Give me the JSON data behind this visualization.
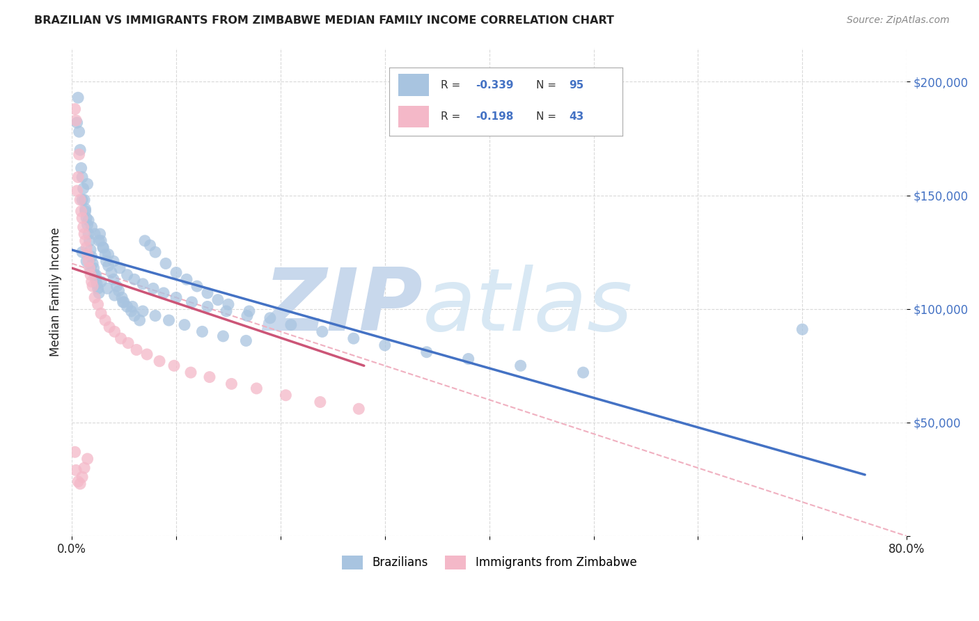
{
  "title": "BRAZILIAN VS IMMIGRANTS FROM ZIMBABWE MEDIAN FAMILY INCOME CORRELATION CHART",
  "source": "Source: ZipAtlas.com",
  "ylabel": "Median Family Income",
  "yticks": [
    0,
    50000,
    100000,
    150000,
    200000
  ],
  "ytick_labels": [
    "",
    "$50,000",
    "$100,000",
    "$150,000",
    "$200,000"
  ],
  "xmin": 0.0,
  "xmax": 0.8,
  "ymin": 0,
  "ymax": 215000,
  "watermark_zip": "ZIP",
  "watermark_atlas": "atlas",
  "color_blue": "#a8c4e0",
  "color_pink": "#f4b8c8",
  "line_blue": "#4472c4",
  "line_pink": "#cc5577",
  "line_dashed_color": "#f0b0c0",
  "brazilians_x": [
    0.005,
    0.006,
    0.007,
    0.008,
    0.009,
    0.01,
    0.011,
    0.012,
    0.013,
    0.014,
    0.015,
    0.015,
    0.016,
    0.017,
    0.018,
    0.019,
    0.02,
    0.021,
    0.022,
    0.023,
    0.024,
    0.025,
    0.026,
    0.027,
    0.028,
    0.03,
    0.032,
    0.033,
    0.035,
    0.038,
    0.04,
    0.043,
    0.045,
    0.048,
    0.05,
    0.053,
    0.057,
    0.06,
    0.065,
    0.07,
    0.075,
    0.08,
    0.09,
    0.1,
    0.11,
    0.12,
    0.13,
    0.14,
    0.15,
    0.17,
    0.19,
    0.21,
    0.24,
    0.27,
    0.3,
    0.34,
    0.38,
    0.43,
    0.49,
    0.7,
    0.01,
    0.013,
    0.016,
    0.019,
    0.022,
    0.026,
    0.03,
    0.035,
    0.04,
    0.046,
    0.053,
    0.06,
    0.068,
    0.078,
    0.088,
    0.1,
    0.115,
    0.13,
    0.148,
    0.168,
    0.01,
    0.014,
    0.018,
    0.023,
    0.028,
    0.034,
    0.041,
    0.049,
    0.058,
    0.068,
    0.08,
    0.093,
    0.108,
    0.125,
    0.145,
    0.167
  ],
  "brazilians_y": [
    182000,
    193000,
    178000,
    170000,
    162000,
    158000,
    153000,
    148000,
    144000,
    140000,
    137000,
    155000,
    133000,
    130000,
    126000,
    123000,
    120000,
    118000,
    115000,
    113000,
    111000,
    109000,
    107000,
    133000,
    130000,
    127000,
    124000,
    121000,
    119000,
    116000,
    113000,
    110000,
    108000,
    105000,
    103000,
    101000,
    99000,
    97000,
    95000,
    130000,
    128000,
    125000,
    120000,
    116000,
    113000,
    110000,
    107000,
    104000,
    102000,
    99000,
    96000,
    93000,
    90000,
    87000,
    84000,
    81000,
    78000,
    75000,
    72000,
    91000,
    148000,
    143000,
    139000,
    136000,
    133000,
    130000,
    127000,
    124000,
    121000,
    118000,
    115000,
    113000,
    111000,
    109000,
    107000,
    105000,
    103000,
    101000,
    99000,
    97000,
    125000,
    121000,
    118000,
    115000,
    112000,
    109000,
    106000,
    103000,
    101000,
    99000,
    97000,
    95000,
    93000,
    90000,
    88000,
    86000
  ],
  "zimbabwe_x": [
    0.003,
    0.004,
    0.005,
    0.006,
    0.007,
    0.008,
    0.009,
    0.01,
    0.011,
    0.012,
    0.013,
    0.014,
    0.015,
    0.016,
    0.017,
    0.018,
    0.019,
    0.02,
    0.022,
    0.025,
    0.028,
    0.032,
    0.036,
    0.041,
    0.047,
    0.054,
    0.062,
    0.072,
    0.084,
    0.098,
    0.114,
    0.132,
    0.153,
    0.177,
    0.205,
    0.238,
    0.275,
    0.003,
    0.004,
    0.006,
    0.008,
    0.01,
    0.012,
    0.015
  ],
  "zimbabwe_y": [
    188000,
    183000,
    152000,
    158000,
    168000,
    148000,
    143000,
    140000,
    136000,
    133000,
    130000,
    127000,
    124000,
    121000,
    118000,
    115000,
    112000,
    110000,
    105000,
    102000,
    98000,
    95000,
    92000,
    90000,
    87000,
    85000,
    82000,
    80000,
    77000,
    75000,
    72000,
    70000,
    67000,
    65000,
    62000,
    59000,
    56000,
    37000,
    29000,
    24000,
    23000,
    26000,
    30000,
    34000
  ],
  "blue_trend_x": [
    0.0,
    0.76
  ],
  "blue_trend_y": [
    126000,
    27000
  ],
  "pink_trend_x": [
    0.0,
    0.28
  ],
  "pink_trend_y": [
    118000,
    75000
  ],
  "dashed_trend_x": [
    0.0,
    0.8
  ],
  "dashed_trend_y": [
    120000,
    0
  ],
  "background_color": "#ffffff",
  "grid_color": "#d0d0d0",
  "axis_label_color": "#4472c4",
  "text_color_black": "#222222",
  "watermark_color": "#ccdcec",
  "watermark_atlas_color": "#c8d8e8"
}
